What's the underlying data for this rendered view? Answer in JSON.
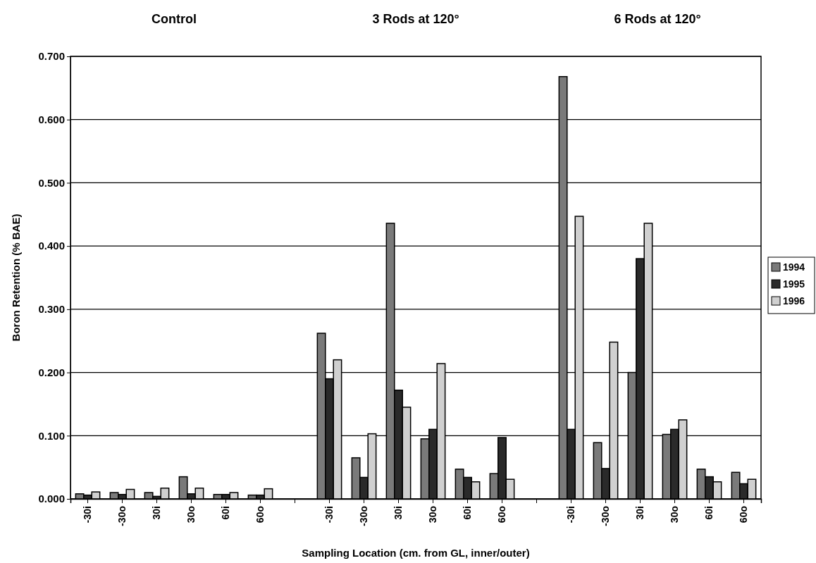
{
  "chart_data": {
    "type": "bar",
    "xlabel": "Sampling Location (cm. from GL, inner/outer)",
    "ylabel": "Boron Retention (% BAE)",
    "annotations": [
      "Control",
      "3 Rods at 120°",
      "6 Rods at 120°"
    ],
    "categories": [
      "-30i",
      "-30o",
      "30i",
      "30o",
      "60i",
      "60o",
      null,
      "-30i",
      "-30o",
      "30i",
      "30o",
      "60i",
      "60o",
      null,
      "-30i",
      "-30o",
      "30i",
      "30o",
      "60i",
      "60o"
    ],
    "series": [
      {
        "name": "1994",
        "color": "#7a7a7a",
        "values": [
          0.008,
          0.01,
          0.01,
          0.035,
          0.007,
          0.006,
          null,
          0.262,
          0.065,
          0.436,
          0.095,
          0.047,
          0.04,
          null,
          0.668,
          0.089,
          0.2,
          0.102,
          0.047,
          0.042
        ]
      },
      {
        "name": "1995",
        "color": "#2a2a2a",
        "values": [
          0.006,
          0.007,
          0.004,
          0.008,
          0.007,
          0.006,
          null,
          0.19,
          0.034,
          0.172,
          0.11,
          0.034,
          0.097,
          null,
          0.11,
          0.048,
          0.38,
          0.11,
          0.035,
          0.024
        ]
      },
      {
        "name": "1996",
        "color": "#d0d0d0",
        "values": [
          0.011,
          0.015,
          0.017,
          0.017,
          0.01,
          0.016,
          null,
          0.22,
          0.103,
          0.145,
          0.214,
          0.027,
          0.031,
          null,
          0.447,
          0.248,
          0.436,
          0.125,
          0.027,
          0.031
        ]
      }
    ],
    "ylim": [
      0,
      0.7
    ],
    "yticks": [
      {
        "value": 0,
        "label": "0.000"
      },
      {
        "value": 0.1,
        "label": "0.100"
      },
      {
        "value": 0.2,
        "label": "0.200"
      },
      {
        "value": 0.3,
        "label": "0.300"
      },
      {
        "value": 0.4,
        "label": "0.400"
      },
      {
        "value": 0.5,
        "label": "0.500"
      },
      {
        "value": 0.6,
        "label": "0.600"
      },
      {
        "value": 0.7,
        "label": "0.700"
      }
    ],
    "grid": "y",
    "legend": "right"
  }
}
